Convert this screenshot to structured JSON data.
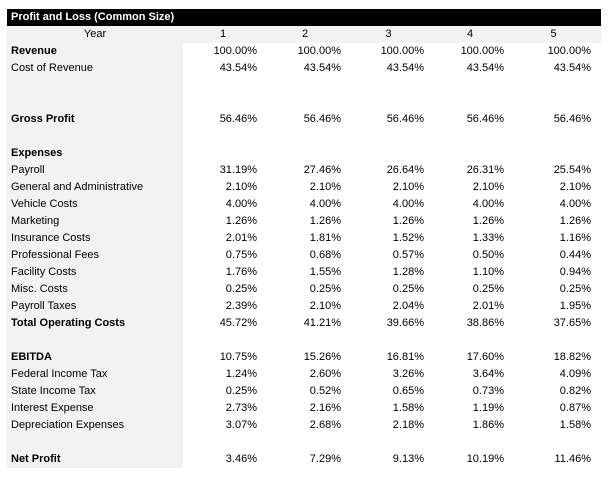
{
  "title": "Profit and Loss (Common Size)",
  "header": {
    "label": "Year",
    "years": [
      "1",
      "2",
      "3",
      "4",
      "5"
    ]
  },
  "rows": [
    {
      "label": "Revenue",
      "bold": true,
      "values": [
        "100.00%",
        "100.00%",
        "100.00%",
        "100.00%",
        "100.00%"
      ]
    },
    {
      "label": "Cost of Revenue",
      "values": [
        "43.54%",
        "43.54%",
        "43.54%",
        "43.54%",
        "43.54%"
      ]
    },
    {
      "label": "",
      "values": []
    },
    {
      "label": "",
      "values": []
    },
    {
      "label": "Gross Profit",
      "bold": true,
      "values": [
        "56.46%",
        "56.46%",
        "56.46%",
        "56.46%",
        "56.46%"
      ]
    },
    {
      "label": "",
      "values": []
    },
    {
      "label": "Expenses",
      "bold": true,
      "values": []
    },
    {
      "label": "Payroll",
      "values": [
        "31.19%",
        "27.46%",
        "26.64%",
        "26.31%",
        "25.54%"
      ]
    },
    {
      "label": "General and Administrative",
      "values": [
        "2.10%",
        "2.10%",
        "2.10%",
        "2.10%",
        "2.10%"
      ]
    },
    {
      "label": "Vehicle Costs",
      "values": [
        "4.00%",
        "4.00%",
        "4.00%",
        "4.00%",
        "4.00%"
      ]
    },
    {
      "label": "Marketing",
      "values": [
        "1.26%",
        "1.26%",
        "1.26%",
        "1.26%",
        "1.26%"
      ]
    },
    {
      "label": "Insurance Costs",
      "values": [
        "2.01%",
        "1.81%",
        "1.52%",
        "1.33%",
        "1.16%"
      ]
    },
    {
      "label": "Professional Fees",
      "values": [
        "0.75%",
        "0.68%",
        "0.57%",
        "0.50%",
        "0.44%"
      ]
    },
    {
      "label": "Facility Costs",
      "values": [
        "1.76%",
        "1.55%",
        "1.28%",
        "1.10%",
        "0.94%"
      ]
    },
    {
      "label": "Misc. Costs",
      "values": [
        "0.25%",
        "0.25%",
        "0.25%",
        "0.25%",
        "0.25%"
      ]
    },
    {
      "label": "Payroll Taxes",
      "values": [
        "2.39%",
        "2.10%",
        "2.04%",
        "2.01%",
        "1.95%"
      ]
    },
    {
      "label": "Total Operating Costs",
      "bold": true,
      "values": [
        "45.72%",
        "41.21%",
        "39.66%",
        "38.86%",
        "37.65%"
      ]
    },
    {
      "label": "",
      "values": []
    },
    {
      "label": "EBITDA",
      "bold": true,
      "values": [
        "10.75%",
        "15.26%",
        "16.81%",
        "17.60%",
        "18.82%"
      ]
    },
    {
      "label": "Federal Income Tax",
      "values": [
        "1.24%",
        "2.60%",
        "3.26%",
        "3.64%",
        "4.09%"
      ]
    },
    {
      "label": "State Income Tax",
      "values": [
        "0.25%",
        "0.52%",
        "0.65%",
        "0.73%",
        "0.82%"
      ]
    },
    {
      "label": "Interest Expense",
      "values": [
        "2.73%",
        "2.16%",
        "1.58%",
        "1.19%",
        "0.87%"
      ]
    },
    {
      "label": "Depreciation Expenses",
      "values": [
        "3.07%",
        "2.68%",
        "2.18%",
        "1.86%",
        "1.58%"
      ]
    },
    {
      "label": "",
      "values": []
    },
    {
      "label": "Net Profit",
      "bold": true,
      "values": [
        "3.46%",
        "7.29%",
        "9.13%",
        "10.19%",
        "11.46%"
      ]
    }
  ]
}
